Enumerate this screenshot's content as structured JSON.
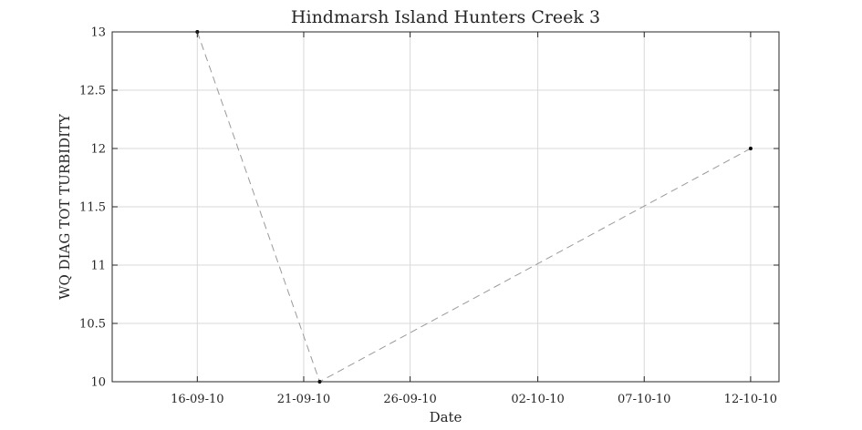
{
  "chart_data": {
    "type": "line",
    "title": "Hindmarsh Island Hunters Creek 3",
    "xlabel": "Date",
    "ylabel": "WQ DIAG TOT TURBIDITY",
    "x_ticks": [
      "2010-09-16",
      "2010-09-21",
      "2010-09-26",
      "2010-10-02",
      "2010-10-07",
      "2010-10-12"
    ],
    "x_tick_labels": [
      "16-09-10",
      "21-09-10",
      "26-09-10",
      "02-10-10",
      "07-10-10",
      "12-10-10"
    ],
    "xlim": [
      "2010-09-12T00:00",
      "2010-10-13T08:00"
    ],
    "y_ticks": [
      10,
      10.5,
      11,
      11.5,
      12,
      12.5,
      13
    ],
    "y_tick_labels": [
      "10",
      "10.5",
      "11",
      "11.5",
      "12",
      "12.5",
      "13"
    ],
    "ylim": [
      10,
      13
    ],
    "grid": true,
    "series": [
      {
        "x": [
          "2010-09-16",
          "2010-09-21T18:00",
          "2010-10-12"
        ],
        "y": [
          13,
          10,
          12
        ],
        "line_style": "dashed",
        "line_color": "#9a9a9a",
        "marker_color": "#000000"
      }
    ]
  }
}
